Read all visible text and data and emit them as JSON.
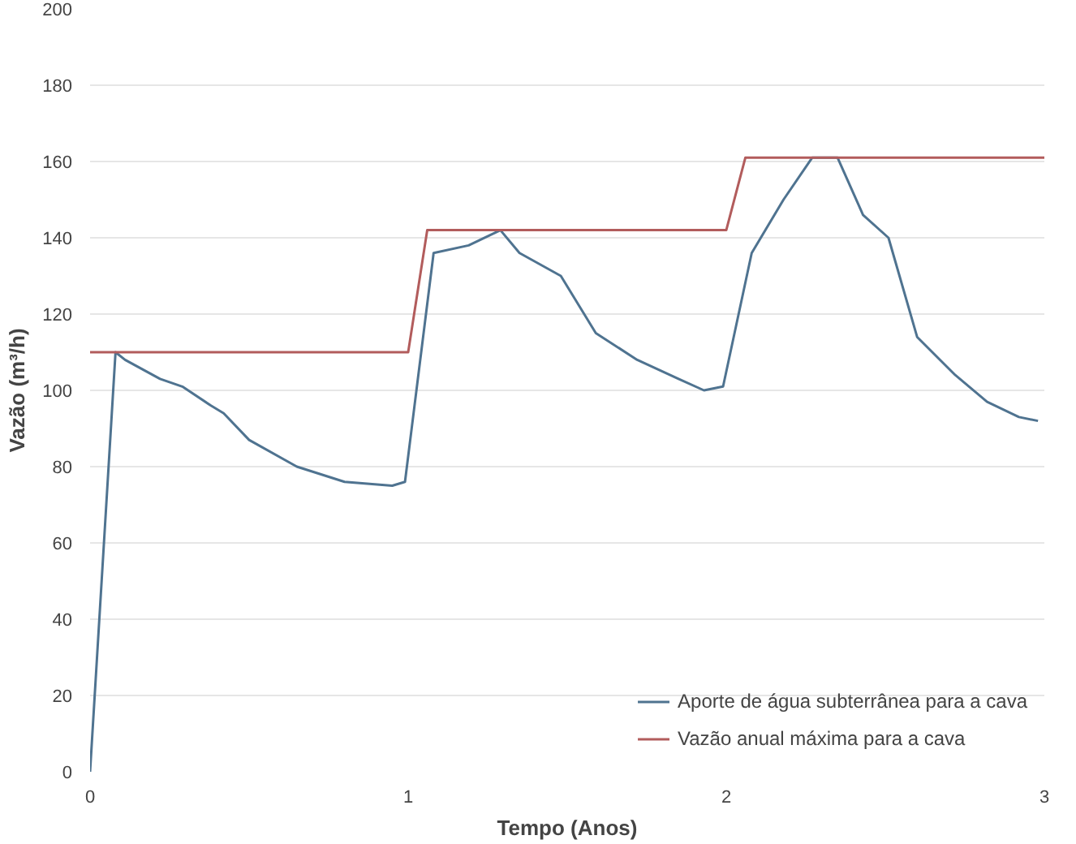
{
  "chart_data": {
    "type": "line",
    "xlabel": "Tempo (Anos)",
    "ylabel": "Vazão (m³/h)",
    "xlim": [
      0,
      3
    ],
    "xticks": [
      0,
      1,
      2,
      3
    ],
    "ylim": [
      0,
      200
    ],
    "yticks": [
      0,
      20,
      40,
      60,
      80,
      100,
      120,
      140,
      160,
      180,
      200
    ],
    "grid": "y",
    "legend": "bottom right",
    "line_style": "solid",
    "series": [
      {
        "name": "Aporte de água subterrânea para a cava",
        "color": "#4f7390",
        "x": [
          0,
          0.08,
          0.11,
          0.22,
          0.29,
          0.38,
          0.42,
          0.5,
          0.65,
          0.8,
          0.95,
          0.99,
          1.08,
          1.19,
          1.29,
          1.35,
          1.48,
          1.59,
          1.72,
          1.85,
          1.93,
          1.99,
          2.08,
          2.18,
          2.27,
          2.35,
          2.43,
          2.51,
          2.6,
          2.72,
          2.82,
          2.92,
          2.98
        ],
        "values": [
          0,
          110,
          108,
          103,
          101,
          96,
          94,
          87,
          80,
          76,
          75,
          76,
          136,
          138,
          142,
          136,
          130,
          115,
          108,
          103,
          100,
          101,
          136,
          150,
          161,
          161,
          146,
          140,
          114,
          104,
          97,
          93,
          92
        ]
      },
      {
        "name": "Vazão anual máxima para a cava",
        "color": "#b25c5c",
        "x": [
          0,
          1.0,
          1.06,
          2.0,
          2.06,
          3.0
        ],
        "values": [
          110,
          110,
          142,
          142,
          161,
          161
        ]
      }
    ]
  }
}
